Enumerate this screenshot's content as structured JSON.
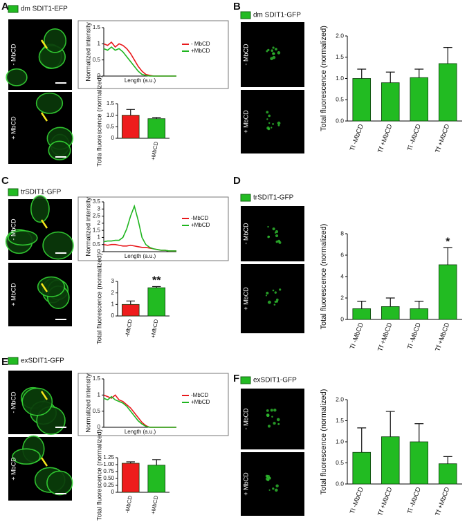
{
  "panels": [
    {
      "label": "A",
      "stain": "dm SDIT1-EFP",
      "rows": [
        "- MbCD",
        "+ MbCD"
      ]
    },
    {
      "label": "B",
      "stain": "dm SDIT1-GFP",
      "rows": [
        "- MbCD",
        "+ MbCD"
      ]
    },
    {
      "label": "C",
      "stain": "trSDIT1-GFP",
      "rows": [
        "- MbCD",
        "+ MbCD"
      ]
    },
    {
      "label": "D",
      "stain": "trSDIT1-GFP",
      "rows": [
        "- MbCD",
        "+ MbCD"
      ]
    },
    {
      "label": "E",
      "stain": "exSDIT1-GFP",
      "rows": [
        "- MbCD",
        "+ MbCD"
      ]
    },
    {
      "label": "F",
      "stain": "exSDIT1-GFP",
      "rows": [
        "- MbCD",
        "+ MbCD"
      ]
    }
  ],
  "chart_data": [
    {
      "type": "line",
      "ylabel": "Normalized intensity",
      "xlabel": "Length (a.u.)",
      "ylim": [
        0,
        1.5
      ],
      "yticks": [
        0,
        0.5,
        1,
        1.5
      ],
      "series": [
        {
          "name": "- MbCD",
          "color": "#e8191c",
          "values": [
            1.0,
            0.95,
            1.05,
            0.9,
            1.0,
            0.95,
            0.85,
            0.7,
            0.5,
            0.3,
            0.15,
            0.05,
            0.02,
            0,
            0,
            0,
            0,
            0,
            0,
            0
          ]
        },
        {
          "name": "+MbCD",
          "color": "#1fb51f",
          "values": [
            0.85,
            0.8,
            0.9,
            0.8,
            0.85,
            0.75,
            0.6,
            0.45,
            0.3,
            0.15,
            0.05,
            0.02,
            0,
            0,
            0,
            0,
            0,
            0,
            0,
            0
          ]
        }
      ]
    },
    {
      "type": "bar",
      "ylabel": "Totla fluorescence (normalized)",
      "categories": [
        null,
        "+MbCD"
      ],
      "values": [
        1.0,
        0.85
      ],
      "errors": [
        0.25,
        0.05
      ],
      "colors": [
        "#ee1c1c",
        "#22bb22"
      ],
      "ylim": [
        0,
        1.5
      ],
      "yticks": [
        0,
        0.5,
        {
          "value": 1,
          "label": "1.0"
        },
        1.5
      ]
    },
    {
      "type": "bar",
      "ylabel": "Total fluorescence (normalized)",
      "categories": [
        "Ti -MbCD",
        "Tf +MbCD",
        "Ti -MbCD",
        "Tf +MbCD"
      ],
      "values": [
        1.0,
        0.9,
        1.02,
        1.35
      ],
      "errors": [
        0.22,
        0.25,
        0.2,
        0.38
      ],
      "colors": [
        "#22bb22",
        "#22bb22",
        "#22bb22",
        "#22bb22"
      ],
      "ylim": [
        0,
        2
      ],
      "yticks": [
        {
          "value": 0,
          "label": "0.0"
        },
        0.5,
        {
          "value": 1,
          "label": "1.0"
        },
        1.5,
        {
          "value": 2,
          "label": "2.0"
        }
      ]
    },
    {
      "type": "line",
      "ylabel": "Normalized intensity",
      "xlabel": "Length (a.u.)",
      "ylim": [
        0,
        3.5
      ],
      "yticks": [
        0,
        0.5,
        1,
        1.5,
        2,
        2.5,
        3,
        3.5
      ],
      "series": [
        {
          "name": "-MbCD",
          "color": "#e8191c",
          "values": [
            0.5,
            0.45,
            0.5,
            0.5,
            0.45,
            0.4,
            0.4,
            0.45,
            0.4,
            0.35,
            0.3,
            0.3,
            0.25,
            0.2,
            0.15,
            0.1,
            0.1,
            0.05,
            0.05,
            0.05
          ]
        },
        {
          "name": "+MbCD",
          "color": "#1fb51f",
          "values": [
            0.7,
            0.75,
            0.75,
            0.8,
            0.8,
            1.0,
            1.6,
            2.5,
            3.2,
            2.2,
            1.0,
            0.5,
            0.3,
            0.2,
            0.15,
            0.1,
            0.1,
            0.05,
            0.05,
            0.05
          ]
        }
      ]
    },
    {
      "type": "bar",
      "ylabel": "Total fluorescence (normalized)",
      "categories": [
        "-MbCD",
        "+MbCD"
      ],
      "values": [
        1.0,
        2.45
      ],
      "errors": [
        0.3,
        0.1
      ],
      "colors": [
        "#ee1c1c",
        "#22bb22"
      ],
      "ylim": [
        0,
        3
      ],
      "yticks": [
        0,
        1,
        2,
        3
      ],
      "annotation": "**"
    },
    {
      "type": "bar",
      "ylabel": "Total fluorescence (normalized)",
      "categories": [
        "Ti -MbCD",
        "Tf +MbCD",
        "Ti -MbCD",
        "Tf +MbCD"
      ],
      "values": [
        1.0,
        1.2,
        1.0,
        5.1
      ],
      "errors": [
        0.7,
        0.8,
        0.7,
        1.6
      ],
      "colors": [
        "#22bb22",
        "#22bb22",
        "#22bb22",
        "#22bb22"
      ],
      "ylim": [
        0,
        8
      ],
      "yticks": [
        0,
        2,
        4,
        6,
        8
      ],
      "annotation": "*"
    },
    {
      "type": "line",
      "ylabel": "Normalized intensity",
      "xlabel": "Length (a.u.)",
      "ylim": [
        0,
        1.5
      ],
      "yticks": [
        0,
        0.5,
        1,
        1.5
      ],
      "series": [
        {
          "name": "-MbCD",
          "color": "#e8191c",
          "values": [
            1.0,
            0.95,
            0.9,
            1.0,
            0.85,
            0.8,
            0.7,
            0.6,
            0.45,
            0.3,
            0.15,
            0.05,
            0,
            0,
            0,
            0,
            0,
            0,
            0,
            0
          ]
        },
        {
          "name": "+MbCD",
          "color": "#1fb51f",
          "values": [
            0.9,
            0.85,
            0.95,
            0.85,
            0.8,
            0.75,
            0.65,
            0.5,
            0.35,
            0.2,
            0.1,
            0.03,
            0,
            0,
            0,
            0,
            0,
            0,
            0,
            0
          ]
        }
      ]
    },
    {
      "type": "bar",
      "ylabel": "Total fluorescence (normalized)",
      "categories": [
        "-MbCD",
        "+MbCD"
      ],
      "values": [
        1.05,
        0.98
      ],
      "errors": [
        0.05,
        0.2
      ],
      "colors": [
        "#ee1c1c",
        "#22bb22"
      ],
      "ylim": [
        0,
        1.25
      ],
      "yticks": [
        0,
        0.25,
        {
          "value": 0.5,
          "label": "0.50"
        },
        0.75,
        {
          "value": 1,
          "label": "1.00"
        },
        1.25
      ]
    },
    {
      "type": "bar",
      "ylabel": "Total fluorescence (normalized)",
      "categories": [
        "Ti -MbCD",
        "Tf +MbCD",
        "Ti -MbCD",
        "Tf +MbCD"
      ],
      "values": [
        0.75,
        1.12,
        1.0,
        0.48
      ],
      "errors": [
        0.58,
        0.6,
        0.43,
        0.17
      ],
      "colors": [
        "#22bb22",
        "#22bb22",
        "#22bb22",
        "#22bb22"
      ],
      "ylim": [
        0,
        2
      ],
      "yticks": [
        {
          "value": 0,
          "label": "0.0"
        },
        0.5,
        {
          "value": 1,
          "label": "1.0"
        },
        1.5,
        {
          "value": 2,
          "label": "2.0"
        }
      ]
    }
  ]
}
